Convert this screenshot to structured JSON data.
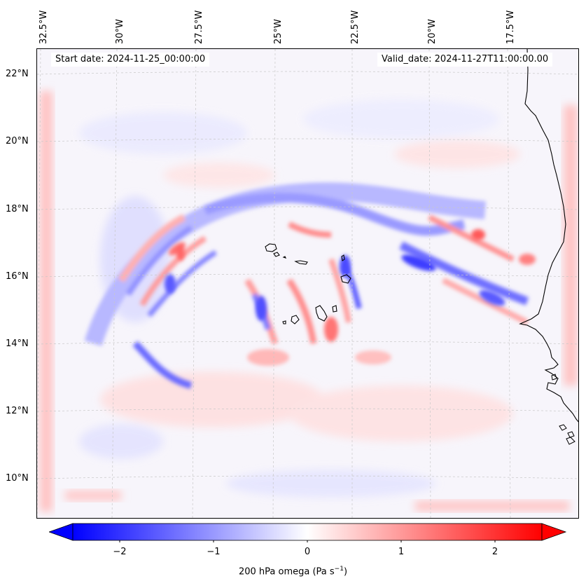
{
  "header": {
    "start_date": "Start date: 2024-11-25_00:00:00",
    "valid_date": "Valid_date: 2024-11-27T11:00:00.00"
  },
  "axes": {
    "lon_labels": [
      "32.5°W",
      "30°W",
      "27.5°W",
      "25°W",
      "22.5°W",
      "20°W",
      "17.5°W"
    ],
    "lat_labels": [
      "22°N",
      "20°N",
      "18°N",
      "16°N",
      "14°N",
      "12°N",
      "10°N"
    ]
  },
  "colorbar": {
    "ticks": [
      "−2",
      "−1",
      "0",
      "1",
      "2"
    ],
    "label_prefix": "200 hPa omega (Pa s",
    "label_sup": "−1",
    "label_suffix": ")",
    "range": [
      -2.6,
      2.6
    ],
    "colors": {
      "negative": "#0000ff",
      "zero": "#ffffff",
      "positive": "#ff0000"
    }
  },
  "map": {
    "islands": [
      "Santo Antão",
      "São Vicente",
      "Santa Luzia",
      "São Nicolau",
      "Sal",
      "Boa Vista",
      "Maio",
      "Santiago",
      "Fogo",
      "Brava"
    ],
    "coastline": "West Africa (Mauritania, Senegal, Gambia, Guinea-Bissau)"
  }
}
